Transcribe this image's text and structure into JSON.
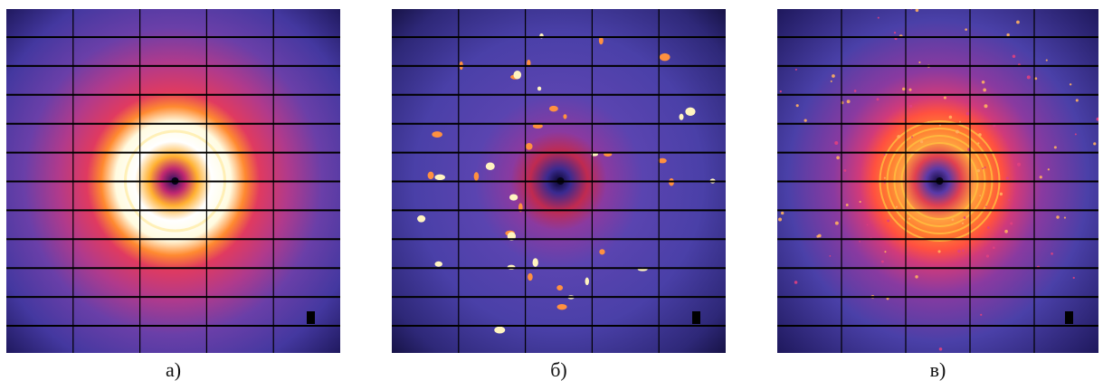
{
  "panels": [
    {
      "label": "а)"
    },
    {
      "label": "б)"
    },
    {
      "label": "в)"
    }
  ]
}
